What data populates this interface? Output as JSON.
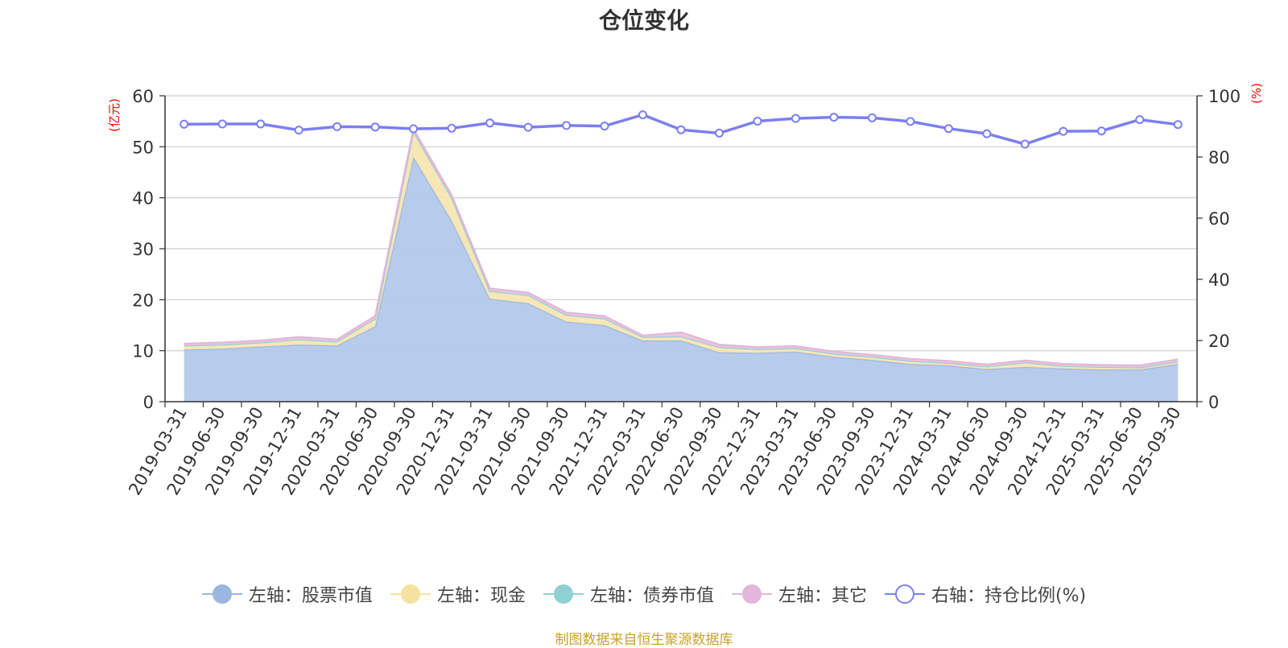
{
  "chart_data": {
    "type": "area",
    "title": "仓位变化",
    "left_axis_unit": "(亿元)",
    "right_axis_unit": "(%)",
    "ylim_left": [
      0,
      60
    ],
    "ylim_right": [
      0,
      100
    ],
    "left_ticks": [
      "0",
      "10",
      "20",
      "30",
      "40",
      "50",
      "60"
    ],
    "right_ticks": [
      "0",
      "20",
      "40",
      "60",
      "80",
      "100"
    ],
    "grid": true,
    "legend_position": "bottom",
    "stacked": true,
    "categories": [
      "2019-03-31",
      "2019-06-30",
      "2019-09-30",
      "2019-12-31",
      "2020-03-31",
      "2020-06-30",
      "2020-09-30",
      "2020-12-31",
      "2021-03-31",
      "2021-06-30",
      "2021-09-30",
      "2021-12-31",
      "2022-03-31",
      "2022-06-30",
      "2022-09-30",
      "2022-12-31",
      "2023-03-31",
      "2023-06-30",
      "2023-09-30",
      "2023-12-31",
      "2024-03-31",
      "2024-06-30",
      "2024-09-30",
      "2024-12-31",
      "2025-03-31",
      "2025-06-30",
      "2025-09-30"
    ],
    "series": [
      {
        "name": "左轴：股票市值",
        "axis": "left",
        "color": "#9bb7df",
        "fill": "#b3c8e9",
        "values": [
          10.2,
          10.4,
          10.8,
          11.2,
          11.0,
          14.8,
          48.0,
          35.5,
          20.2,
          19.3,
          15.7,
          15.0,
          12.0,
          12.0,
          9.7,
          9.6,
          9.8,
          8.8,
          8.2,
          7.4,
          7.1,
          6.4,
          6.8,
          6.5,
          6.3,
          6.3,
          7.4
        ]
      },
      {
        "name": "左轴：现金",
        "axis": "left",
        "color": "#f6e2a0",
        "fill": "#f7e6b3",
        "values": [
          0.8,
          0.8,
          0.8,
          1.0,
          0.8,
          1.5,
          5.0,
          4.5,
          1.5,
          1.6,
          1.3,
          1.3,
          0.7,
          0.8,
          1.0,
          0.7,
          0.7,
          0.6,
          0.6,
          0.6,
          0.5,
          0.5,
          0.9,
          0.5,
          0.5,
          0.4,
          0.5
        ]
      },
      {
        "name": "左轴：债券市值",
        "axis": "left",
        "color": "#8fd0d2",
        "fill": "#a9dadb",
        "values": [
          0,
          0,
          0,
          0,
          0,
          0,
          0,
          0,
          0,
          0,
          0,
          0,
          0,
          0,
          0,
          0,
          0,
          0,
          0,
          0,
          0,
          0,
          0,
          0,
          0,
          0,
          0
        ]
      },
      {
        "name": "左轴：其它",
        "axis": "left",
        "color": "#e3b6da",
        "fill": "#ebc4e2",
        "values": [
          0.4,
          0.4,
          0.4,
          0.5,
          0.4,
          0.5,
          0.5,
          0.5,
          0.5,
          0.5,
          0.5,
          0.5,
          0.3,
          0.8,
          0.5,
          0.4,
          0.4,
          0.4,
          0.4,
          0.4,
          0.4,
          0.4,
          0.4,
          0.4,
          0.4,
          0.4,
          0.4
        ]
      },
      {
        "name": "右轴：持仓比例(%)",
        "axis": "right",
        "color": "#7b7ff0",
        "values": [
          90.7,
          90.8,
          90.8,
          88.8,
          89.9,
          89.8,
          89.2,
          89.4,
          91.1,
          89.7,
          90.3,
          90.1,
          93.8,
          88.9,
          87.8,
          91.7,
          92.6,
          93.0,
          92.8,
          91.6,
          89.3,
          87.6,
          84.2,
          88.4,
          88.5,
          92.2,
          90.6
        ]
      }
    ]
  },
  "source_note": "制图数据来自恒生聚源数据库"
}
